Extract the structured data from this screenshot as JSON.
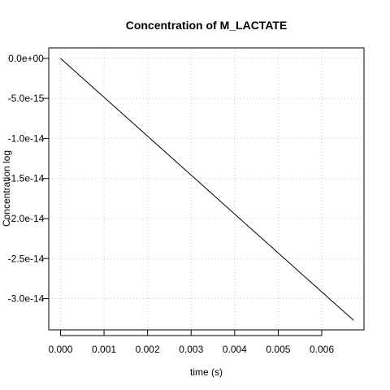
{
  "chart_data": {
    "type": "line",
    "title": "Concentration of M_LACTATE",
    "xlabel": "time (s)",
    "ylabel": "Concentration log",
    "xlim": [
      -0.00027,
      0.00697
    ],
    "ylim": [
      -3.39e-14,
      1.3e-15
    ],
    "x_ticks": [
      {
        "value": 0.0,
        "label": "0.000"
      },
      {
        "value": 0.001,
        "label": "0.001"
      },
      {
        "value": 0.002,
        "label": "0.002"
      },
      {
        "value": 0.003,
        "label": "0.003"
      },
      {
        "value": 0.004,
        "label": "0.004"
      },
      {
        "value": 0.005,
        "label": "0.005"
      },
      {
        "value": 0.006,
        "label": "0.006"
      }
    ],
    "y_ticks": [
      {
        "value": 0,
        "label": "0.0e+00"
      },
      {
        "value": -5e-15,
        "label": "-5.0e-15"
      },
      {
        "value": -1e-14,
        "label": "-1.0e-14"
      },
      {
        "value": -1.5e-14,
        "label": "-1.5e-14"
      },
      {
        "value": -2e-14,
        "label": "-2.0e-14"
      },
      {
        "value": -2.5e-14,
        "label": "-2.5e-14"
      },
      {
        "value": -3e-14,
        "label": "-3.0e-14"
      }
    ],
    "grid": true,
    "legend": "none",
    "series": [
      {
        "color": "#000000",
        "x": [
          0.0,
          0.001,
          0.002,
          0.003,
          0.004,
          0.005,
          0.006,
          0.00673
        ],
        "y": [
          0.0,
          -4.86e-15,
          -9.72e-15,
          -1.458e-14,
          -1.944e-14,
          -2.43e-14,
          -2.916e-14,
          -3.27e-14
        ]
      }
    ]
  }
}
